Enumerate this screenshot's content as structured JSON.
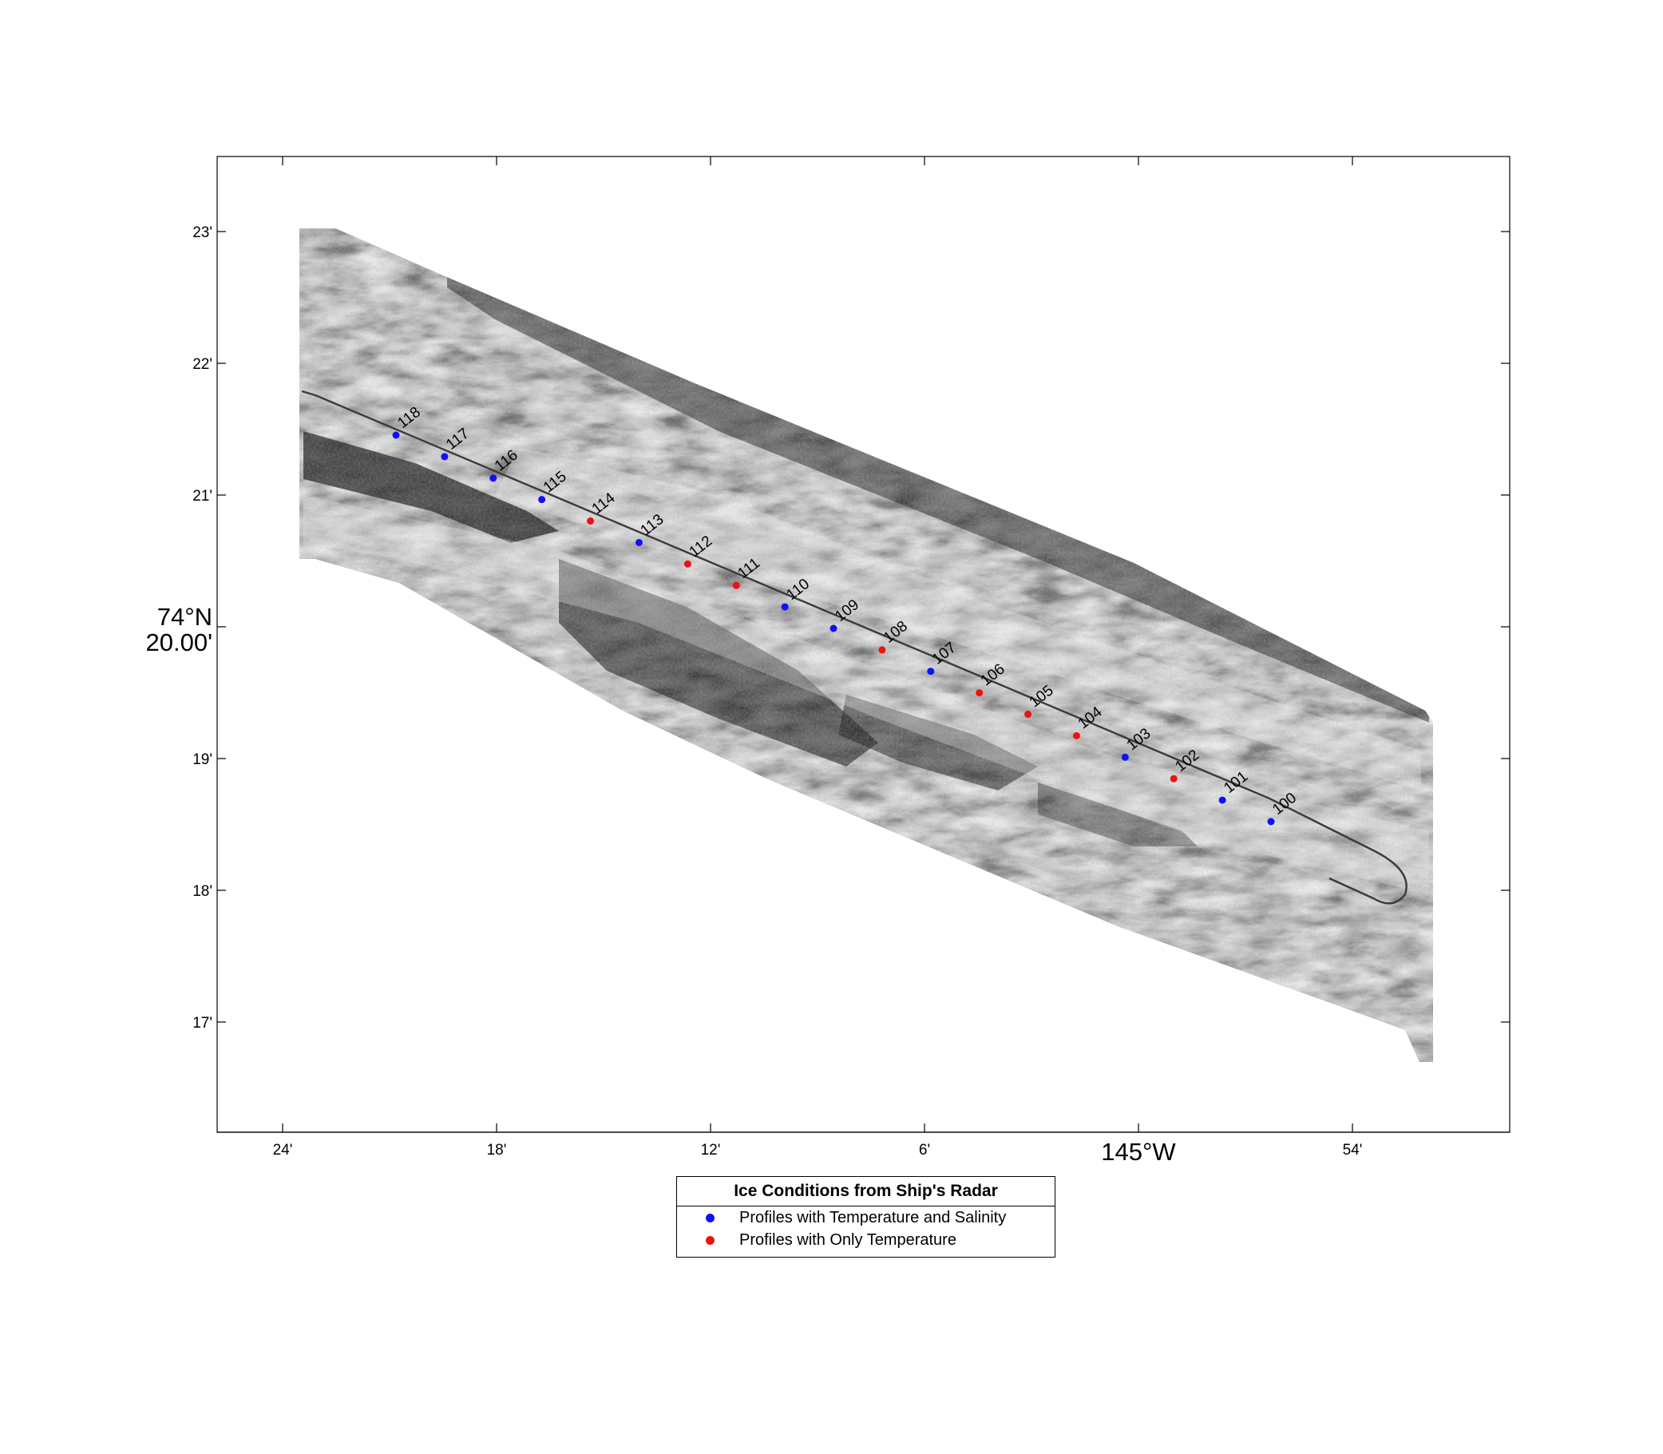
{
  "map": {
    "x_ticks": [
      {
        "label": "24'"
      },
      {
        "label": "18'"
      },
      {
        "label": "12'"
      },
      {
        "label": "6'"
      },
      {
        "label": "145°W",
        "major": true
      },
      {
        "label": "54'"
      }
    ],
    "y_ticks": [
      {
        "label": "23'"
      },
      {
        "label": "22'"
      },
      {
        "label": "21'"
      },
      {
        "label": "74°N",
        "label2": "20.00'",
        "major": true
      },
      {
        "label": "19'"
      },
      {
        "label": "18'"
      },
      {
        "label": "17'"
      }
    ],
    "radar_image": "grayscale ship radar ice mosaic",
    "track_color": "#444444",
    "colors": {
      "temperature_and_salinity": "#1010ff",
      "only_temperature": "#ee1111"
    }
  },
  "stations": [
    {
      "id": "118",
      "type": "ts"
    },
    {
      "id": "117",
      "type": "ts"
    },
    {
      "id": "116",
      "type": "ts"
    },
    {
      "id": "115",
      "type": "ts"
    },
    {
      "id": "114",
      "type": "t"
    },
    {
      "id": "113",
      "type": "ts"
    },
    {
      "id": "112",
      "type": "t"
    },
    {
      "id": "111",
      "type": "t"
    },
    {
      "id": "110",
      "type": "ts"
    },
    {
      "id": "109",
      "type": "ts"
    },
    {
      "id": "108",
      "type": "t"
    },
    {
      "id": "107",
      "type": "ts"
    },
    {
      "id": "106",
      "type": "t"
    },
    {
      "id": "105",
      "type": "t"
    },
    {
      "id": "104",
      "type": "t"
    },
    {
      "id": "103",
      "type": "ts"
    },
    {
      "id": "102",
      "type": "t"
    },
    {
      "id": "101",
      "type": "ts"
    },
    {
      "id": "100",
      "type": "ts"
    }
  ],
  "legend": {
    "title": "Ice Conditions from Ship's Radar",
    "items": [
      {
        "label": "Profiles with Temperature and Salinity",
        "color": "#1010ff"
      },
      {
        "label": "Profiles with Only Temperature",
        "color": "#ee1111"
      }
    ]
  }
}
